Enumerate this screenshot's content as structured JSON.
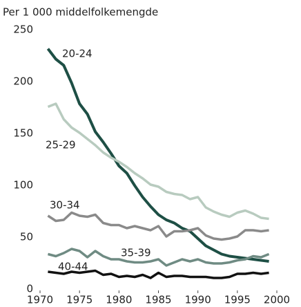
{
  "chart_data": {
    "type": "line",
    "ylabel": "Per 1 000 middelfolkemengde",
    "x": [
      1971,
      1972,
      1973,
      1974,
      1975,
      1976,
      1977,
      1978,
      1979,
      1980,
      1981,
      1982,
      1983,
      1984,
      1985,
      1986,
      1987,
      1988,
      1989,
      1990,
      1991,
      1992,
      1993,
      1994,
      1995,
      1996,
      1997,
      1998,
      1999
    ],
    "xlim": [
      1970,
      2000
    ],
    "xticks": [
      1970,
      1975,
      1980,
      1985,
      1990,
      1995,
      2000
    ],
    "ylim": [
      0,
      250
    ],
    "yticks": [
      0,
      50,
      100,
      150,
      200,
      250
    ],
    "series": [
      {
        "name": "20-24",
        "color": "#1e4f45",
        "values": [
          233,
          223,
          217,
          200,
          180,
          170,
          153,
          143,
          132,
          120,
          113,
          101,
          90,
          81,
          73,
          68,
          65,
          60,
          57,
          50,
          43,
          39,
          35,
          33,
          32,
          31,
          30,
          29,
          28
        ]
      },
      {
        "name": "25-29",
        "color": "#b8cbbf",
        "values": [
          177,
          180,
          165,
          157,
          152,
          146,
          140,
          133,
          128,
          124,
          119,
          113,
          108,
          102,
          100,
          95,
          93,
          92,
          88,
          90,
          80,
          76,
          73,
          71,
          75,
          77,
          74,
          70,
          69
        ]
      },
      {
        "name": "30-34",
        "color": "#8a8a8a",
        "values": [
          72,
          67,
          68,
          75,
          72,
          71,
          73,
          65,
          63,
          63,
          60,
          62,
          60,
          58,
          62,
          52,
          57,
          57,
          58,
          60,
          53,
          50,
          49,
          50,
          52,
          58,
          58,
          57,
          58
        ]
      },
      {
        "name": "35-39",
        "color": "#6f8b83",
        "values": [
          35,
          33,
          36,
          40,
          38,
          32,
          38,
          33,
          30,
          30,
          28,
          27,
          27,
          28,
          30,
          24,
          27,
          30,
          28,
          30,
          27,
          26,
          26,
          27,
          29,
          30,
          33,
          32,
          35
        ]
      },
      {
        "name": "40-44",
        "color": "#111111",
        "values": [
          18,
          17,
          16,
          18,
          17,
          18,
          19,
          15,
          16,
          13,
          14,
          13,
          15,
          12,
          17,
          13,
          14,
          14,
          13,
          13,
          13,
          12,
          12,
          13,
          16,
          16,
          17,
          16,
          17
        ]
      }
    ]
  }
}
